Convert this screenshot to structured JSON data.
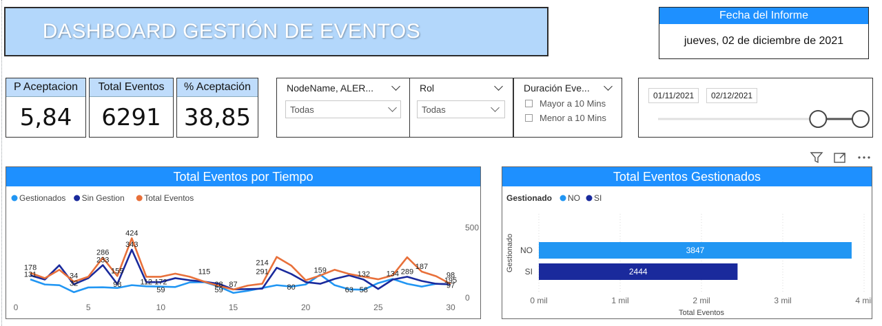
{
  "header": {
    "title": "DASHBOARD GESTIÓN DE  EVENTOS",
    "fecha_label": "Fecha del Informe",
    "fecha_value": "jueves, 02 de diciembre de 2021"
  },
  "kpis": [
    {
      "label": "P Aceptacion",
      "value": "5,84"
    },
    {
      "label": "Total Eventos",
      "value": "6291"
    },
    {
      "label": "% Aceptación",
      "value": "38,85"
    }
  ],
  "slicers": {
    "node": {
      "title": "NodeName, ALER...",
      "value": "Todas"
    },
    "rol": {
      "title": "Rol",
      "value": "Todas"
    },
    "duracion": {
      "title": "Duración Eve...",
      "options": [
        "Mayor a 10 Mins",
        "Menor a 10 Mins"
      ]
    },
    "dates": {
      "start": "01/11/2021",
      "end": "02/12/2021",
      "range_fraction": [
        0.79,
        1.0
      ]
    }
  },
  "icons": [
    "filter-icon",
    "focus-mode-icon",
    "more-options-icon"
  ],
  "colors": {
    "accent": "#1e90ff",
    "gestionados": "#2196f3",
    "sin_gestion": "#1a2a9c",
    "total_eventos": "#e8703a",
    "bar_no": "#2196f3",
    "bar_si": "#1a2a9c"
  },
  "chart_data": [
    {
      "type": "line",
      "title": "Total Eventos por Tiempo",
      "x": [
        1,
        2,
        3,
        4,
        5,
        6,
        7,
        8,
        9,
        10,
        11,
        12,
        13,
        14,
        15,
        16,
        17,
        18,
        19,
        20,
        21,
        22,
        23,
        24,
        25,
        26,
        27,
        28,
        29,
        30
      ],
      "xticks": [
        "0",
        "5",
        "10",
        "15",
        "20",
        "25",
        "30"
      ],
      "xlim": [
        0,
        30
      ],
      "ylim": [
        0,
        500
      ],
      "yticks": [
        "0",
        "500"
      ],
      "series": [
        {
          "name": "Gestionados",
          "values": [
            131,
            95,
            90,
            40,
            74,
            75,
            70,
            90,
            82,
            80,
            77,
            110,
            112,
            80,
            35,
            50,
            70,
            90,
            80,
            95,
            165,
            90,
            60,
            58,
            105,
            134,
            100,
            80,
            100,
            95
          ]
        },
        {
          "name": "Sin Gestion",
          "values": [
            160,
            130,
            232,
            96,
            140,
            233,
            98,
            343,
            112,
            112,
            140,
            125,
            115,
            100,
            60,
            62,
            65,
            214,
            170,
            112,
            100,
            135,
            160,
            130,
            63,
            130,
            150,
            120,
            100,
            97
          ]
        },
        {
          "name": "Total Eventos",
          "values": [
            178,
            140,
            200,
            115,
            150,
            286,
            155,
            424,
            150,
            150,
            172,
            150,
            115,
            85,
            59,
            87,
            100,
            291,
            230,
            125,
            159,
            200,
            170,
            150,
            132,
            160,
            289,
            187,
            154,
            98
          ]
        }
      ],
      "labels": [
        {
          "text": "178",
          "x": 1,
          "y": 178
        },
        {
          "text": "131",
          "x": 1,
          "y": 131
        },
        {
          "text": "34",
          "x": 4,
          "y": 120
        },
        {
          "text": "32",
          "x": 4,
          "y": 65
        },
        {
          "text": "233",
          "x": 6,
          "y": 233
        },
        {
          "text": "286",
          "x": 6,
          "y": 286
        },
        {
          "text": "155",
          "x": 7,
          "y": 155
        },
        {
          "text": "98",
          "x": 7,
          "y": 60
        },
        {
          "text": "343",
          "x": 8,
          "y": 343
        },
        {
          "text": "424",
          "x": 8,
          "y": 424
        },
        {
          "text": "112",
          "x": 9,
          "y": 75
        },
        {
          "text": "172",
          "x": 10,
          "y": 75
        },
        {
          "text": "59",
          "x": 10,
          "y": 20
        },
        {
          "text": "115",
          "x": 13,
          "y": 150
        },
        {
          "text": "28",
          "x": 14,
          "y": 60
        },
        {
          "text": "59",
          "x": 14,
          "y": 20
        },
        {
          "text": "87",
          "x": 15,
          "y": 60
        },
        {
          "text": "214",
          "x": 17,
          "y": 214
        },
        {
          "text": "291",
          "x": 17,
          "y": 150
        },
        {
          "text": "80",
          "x": 19,
          "y": 40
        },
        {
          "text": "159",
          "x": 21,
          "y": 159
        },
        {
          "text": "63",
          "x": 23,
          "y": 20
        },
        {
          "text": "58",
          "x": 24,
          "y": 20
        },
        {
          "text": "132",
          "x": 24,
          "y": 132
        },
        {
          "text": "134",
          "x": 26,
          "y": 134
        },
        {
          "text": "289",
          "x": 27,
          "y": 150
        },
        {
          "text": "187",
          "x": 28,
          "y": 187
        },
        {
          "text": "98",
          "x": 30,
          "y": 125
        },
        {
          "text": "195",
          "x": 30,
          "y": 88
        },
        {
          "text": "97",
          "x": 30,
          "y": 52
        }
      ],
      "legend": "top-left"
    },
    {
      "type": "bar",
      "orientation": "horizontal",
      "title": "Total Eventos Gestionados",
      "legend_title": "Gestionado",
      "legend_items": [
        "NO",
        "SI"
      ],
      "categories": [
        "NO",
        "SI"
      ],
      "values": [
        3847,
        2444
      ],
      "value_labels": [
        "3847",
        "2444"
      ],
      "xlim": [
        0,
        4000
      ],
      "xticks": [
        "0 mil",
        "1 mil",
        "2 mil",
        "3 mil",
        "4 mil"
      ],
      "xlabel": "Total Eventos",
      "ylabel": "Gestionado",
      "legend": "top-left"
    }
  ]
}
